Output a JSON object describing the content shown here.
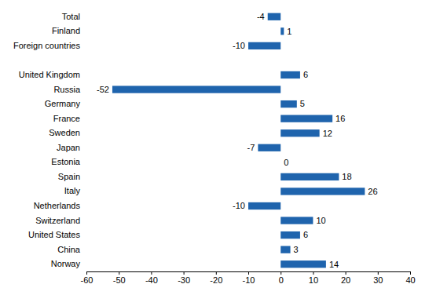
{
  "chart_data": {
    "type": "bar",
    "orientation": "horizontal",
    "categories": [
      "Total",
      "Finland",
      "Foreign countries",
      null,
      "United Kingdom",
      "Russia",
      "Germany",
      "France",
      "Sweden",
      "Japan",
      "Estonia",
      "Spain",
      "Italy",
      "Netherlands",
      "Switzerland",
      "United States",
      "China",
      "Norway"
    ],
    "values": [
      -4,
      1,
      -10,
      null,
      6,
      -52,
      5,
      16,
      12,
      -7,
      0,
      18,
      26,
      -10,
      10,
      6,
      3,
      14
    ],
    "color": "#1f64ad",
    "xlim": [
      -60,
      40
    ],
    "xticks": [
      -60,
      -50,
      -40,
      -30,
      -20,
      -10,
      0,
      10,
      20,
      30,
      40
    ],
    "grid": false,
    "data_labels": true
  }
}
